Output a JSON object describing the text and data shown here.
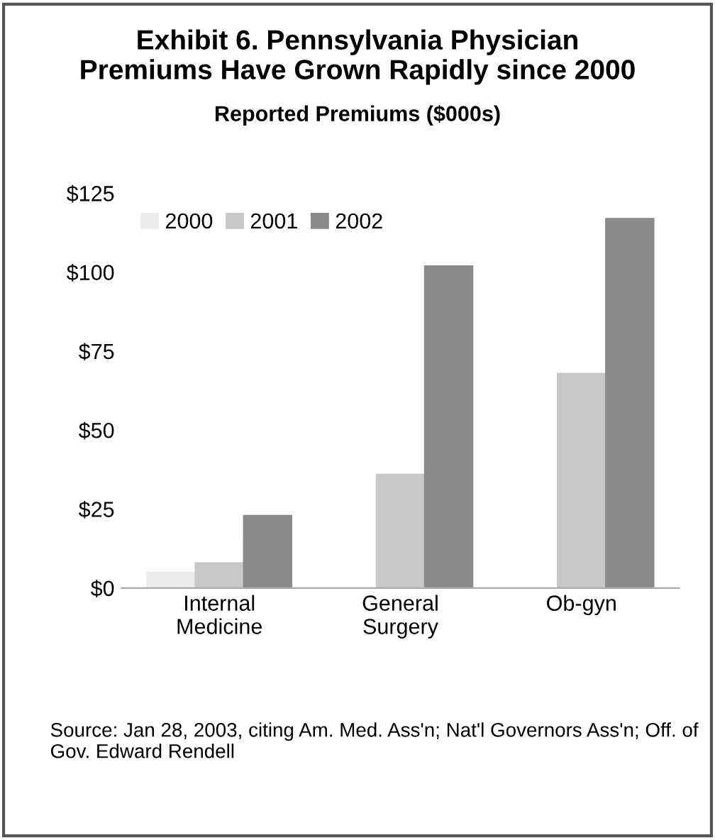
{
  "chart_data": {
    "type": "bar",
    "title": "Exhibit 6. Pennsylvania Physician\nPremiums Have Grown Rapidly since 2000",
    "subtitle": "Reported Premiums ($000s)",
    "categories": [
      "Internal\nMedicine",
      "General\nSurgery",
      "Ob-gyn"
    ],
    "series": [
      {
        "name": "2000",
        "color": "#ebebeb",
        "values": [
          5,
          null,
          null
        ]
      },
      {
        "name": "2001",
        "color": "#c8c8c8",
        "values": [
          8,
          36,
          68
        ]
      },
      {
        "name": "2002",
        "color": "#8a8a8a",
        "values": [
          23,
          102,
          117
        ]
      }
    ],
    "ylim": [
      0,
      125
    ],
    "yticks": [
      {
        "value": 0,
        "label": "$0"
      },
      {
        "value": 25,
        "label": "$25"
      },
      {
        "value": 50,
        "label": "$50"
      },
      {
        "value": 75,
        "label": "$75"
      },
      {
        "value": 100,
        "label": "$100"
      },
      {
        "value": 125,
        "label": "$125"
      }
    ],
    "grid": false,
    "legend": "top left",
    "annotations": [
      "Source: Jan 28, 2003, citing Am. Med. Ass'n; Nat'l Governors Ass'n; Off. of Gov. Edward Rendell"
    ]
  }
}
